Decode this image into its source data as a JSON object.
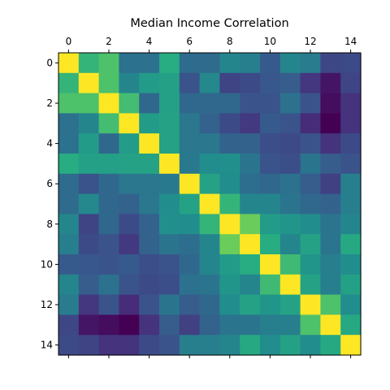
{
  "chart_data": {
    "type": "heatmap",
    "title": "Median Income Correlation",
    "xlabel": "",
    "ylabel": "",
    "x_tick_labels": [
      "0",
      "2",
      "4",
      "6",
      "8",
      "10",
      "12",
      "14"
    ],
    "y_tick_labels": [
      "0",
      "2",
      "4",
      "6",
      "8",
      "10",
      "12",
      "14"
    ],
    "x_ticks": [
      0,
      2,
      4,
      6,
      8,
      10,
      12,
      14
    ],
    "y_ticks": [
      0,
      2,
      4,
      6,
      8,
      10,
      12,
      14
    ],
    "x_axis_position": "top",
    "colormap": "viridis",
    "value_range": [
      0.12,
      1.0
    ],
    "grid": false,
    "legend": "none",
    "size": 15,
    "matrix": [
      [
        1.0,
        0.7,
        0.75,
        0.45,
        0.45,
        0.67,
        0.43,
        0.43,
        0.52,
        0.5,
        0.37,
        0.52,
        0.49,
        0.31,
        0.32
      ],
      [
        0.7,
        1.0,
        0.75,
        0.52,
        0.6,
        0.62,
        0.35,
        0.53,
        0.3,
        0.32,
        0.36,
        0.38,
        0.26,
        0.17,
        0.3
      ],
      [
        0.75,
        0.75,
        1.0,
        0.73,
        0.42,
        0.62,
        0.42,
        0.42,
        0.42,
        0.35,
        0.35,
        0.45,
        0.35,
        0.15,
        0.25
      ],
      [
        0.45,
        0.52,
        0.73,
        1.0,
        0.6,
        0.63,
        0.47,
        0.4,
        0.32,
        0.27,
        0.37,
        0.35,
        0.23,
        0.12,
        0.25
      ],
      [
        0.45,
        0.6,
        0.42,
        0.6,
        1.0,
        0.63,
        0.47,
        0.47,
        0.4,
        0.4,
        0.33,
        0.32,
        0.35,
        0.25,
        0.32
      ],
      [
        0.67,
        0.62,
        0.62,
        0.63,
        0.63,
        1.0,
        0.48,
        0.55,
        0.56,
        0.46,
        0.35,
        0.33,
        0.46,
        0.38,
        0.35
      ],
      [
        0.43,
        0.35,
        0.42,
        0.47,
        0.47,
        0.48,
        1.0,
        0.63,
        0.55,
        0.44,
        0.42,
        0.45,
        0.38,
        0.29,
        0.5
      ],
      [
        0.43,
        0.53,
        0.42,
        0.4,
        0.47,
        0.55,
        0.63,
        1.0,
        0.7,
        0.52,
        0.52,
        0.46,
        0.42,
        0.4,
        0.5
      ],
      [
        0.52,
        0.3,
        0.42,
        0.32,
        0.4,
        0.56,
        0.55,
        0.7,
        1.0,
        0.8,
        0.6,
        0.58,
        0.55,
        0.46,
        0.52
      ],
      [
        0.5,
        0.32,
        0.35,
        0.27,
        0.4,
        0.46,
        0.44,
        0.52,
        0.8,
        1.0,
        0.67,
        0.52,
        0.63,
        0.46,
        0.65
      ],
      [
        0.37,
        0.36,
        0.35,
        0.37,
        0.33,
        0.35,
        0.42,
        0.52,
        0.6,
        0.67,
        1.0,
        0.72,
        0.58,
        0.5,
        0.55
      ],
      [
        0.52,
        0.38,
        0.45,
        0.35,
        0.32,
        0.33,
        0.45,
        0.46,
        0.58,
        0.52,
        0.72,
        1.0,
        0.63,
        0.5,
        0.62
      ],
      [
        0.49,
        0.26,
        0.35,
        0.23,
        0.35,
        0.46,
        0.38,
        0.42,
        0.55,
        0.63,
        0.58,
        0.63,
        1.0,
        0.75,
        0.55
      ],
      [
        0.31,
        0.17,
        0.15,
        0.12,
        0.25,
        0.38,
        0.29,
        0.4,
        0.46,
        0.46,
        0.5,
        0.5,
        0.75,
        1.0,
        0.65
      ],
      [
        0.32,
        0.3,
        0.25,
        0.25,
        0.32,
        0.35,
        0.5,
        0.5,
        0.52,
        0.65,
        0.55,
        0.62,
        0.55,
        0.65,
        1.0
      ]
    ]
  }
}
